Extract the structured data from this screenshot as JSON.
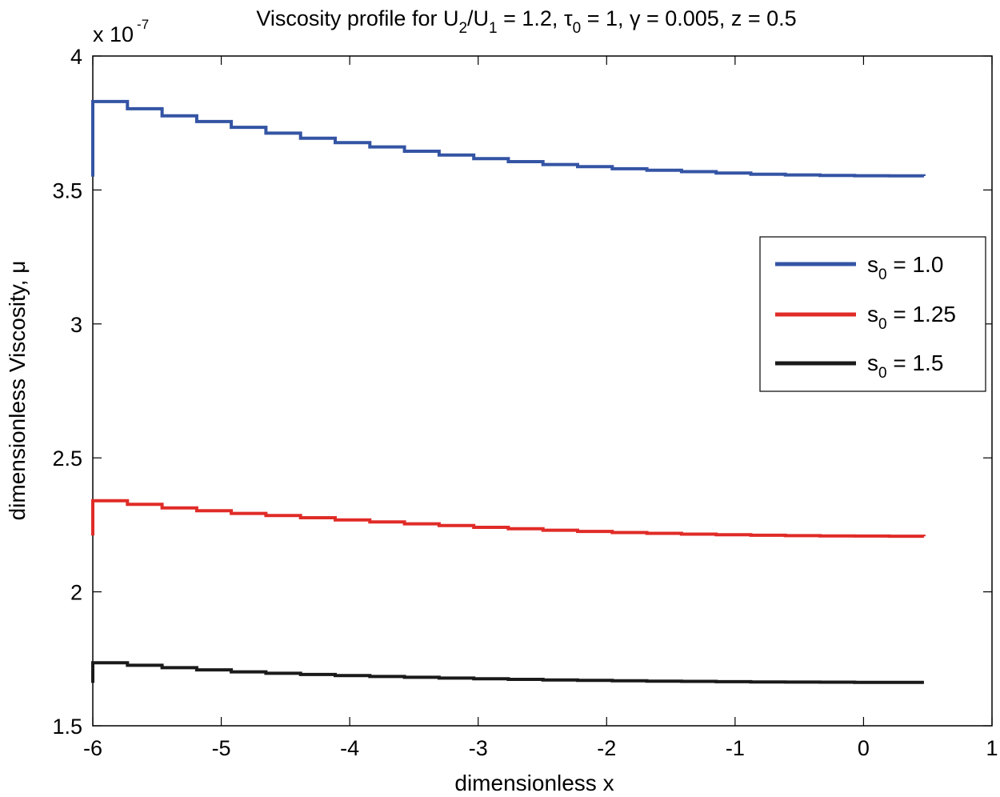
{
  "chart_data": {
    "type": "line",
    "title": {
      "prefix": "Viscosity profile for U",
      "u2_sub": "2",
      "slash": "/U",
      "u1_sub": "1",
      "mid1": " = 1.2,  ",
      "tau": "τ",
      "tau_sub": "0",
      "mid2": " = 1,  γ = 0.005, z = 0.5"
    },
    "xlabel": "dimensionless x",
    "ylabel": "dimensionless Viscosity, μ",
    "y_exponent": {
      "base": "x 10",
      "power": "-7"
    },
    "xlim": [
      -6,
      1
    ],
    "ylim": [
      1.5,
      4
    ],
    "xticks": [
      -6,
      -5,
      -4,
      -3,
      -2,
      -1,
      0,
      1
    ],
    "xtick_labels": [
      "-6",
      "-5",
      "-4",
      "-3",
      "-2",
      "-1",
      "0",
      "1"
    ],
    "yticks": [
      1.5,
      2,
      2.5,
      3,
      3.5,
      4
    ],
    "ytick_labels": [
      "1.5",
      "2",
      "2.5",
      "3",
      "3.5",
      "4"
    ],
    "legend_position": "right",
    "series": [
      {
        "name": "s0 = 1.0",
        "label_base": "s",
        "label_sub": "0",
        "label_rest": " = 1.0",
        "color": "#3454a4",
        "x": [
          -6.0,
          -6.0,
          -5.5,
          -5.0,
          -4.5,
          -4.0,
          -3.5,
          -3.0,
          -2.5,
          -2.0,
          -1.5,
          -1.0,
          -0.5,
          0.0,
          0.47
        ],
        "y": [
          3.55,
          3.83,
          3.78,
          3.74,
          3.7,
          3.67,
          3.64,
          3.615,
          3.595,
          3.58,
          3.57,
          3.56,
          3.555,
          3.553,
          3.552
        ]
      },
      {
        "name": "s0 = 1.25",
        "label_base": "s",
        "label_sub": "0",
        "label_rest": " = 1.25",
        "color": "#e02b27",
        "x": [
          -6.0,
          -6.0,
          -5.5,
          -5.0,
          -4.5,
          -4.0,
          -3.5,
          -3.0,
          -2.5,
          -2.0,
          -1.5,
          -1.0,
          -0.5,
          0.0,
          0.47
        ],
        "y": [
          2.21,
          2.34,
          2.315,
          2.295,
          2.28,
          2.265,
          2.252,
          2.24,
          2.23,
          2.222,
          2.216,
          2.212,
          2.209,
          2.208,
          2.207
        ]
      },
      {
        "name": "s0 = 1.5",
        "label_base": "s",
        "label_sub": "0",
        "label_rest": " = 1.5",
        "color": "#1a1a1a",
        "x": [
          -6.0,
          -6.0,
          -5.5,
          -5.0,
          -4.5,
          -4.0,
          -3.5,
          -3.0,
          -2.5,
          -2.0,
          -1.5,
          -1.0,
          -0.5,
          0.0,
          0.47
        ],
        "y": [
          1.66,
          1.735,
          1.718,
          1.703,
          1.693,
          1.686,
          1.68,
          1.675,
          1.671,
          1.668,
          1.666,
          1.664,
          1.663,
          1.662,
          1.662
        ]
      }
    ]
  }
}
